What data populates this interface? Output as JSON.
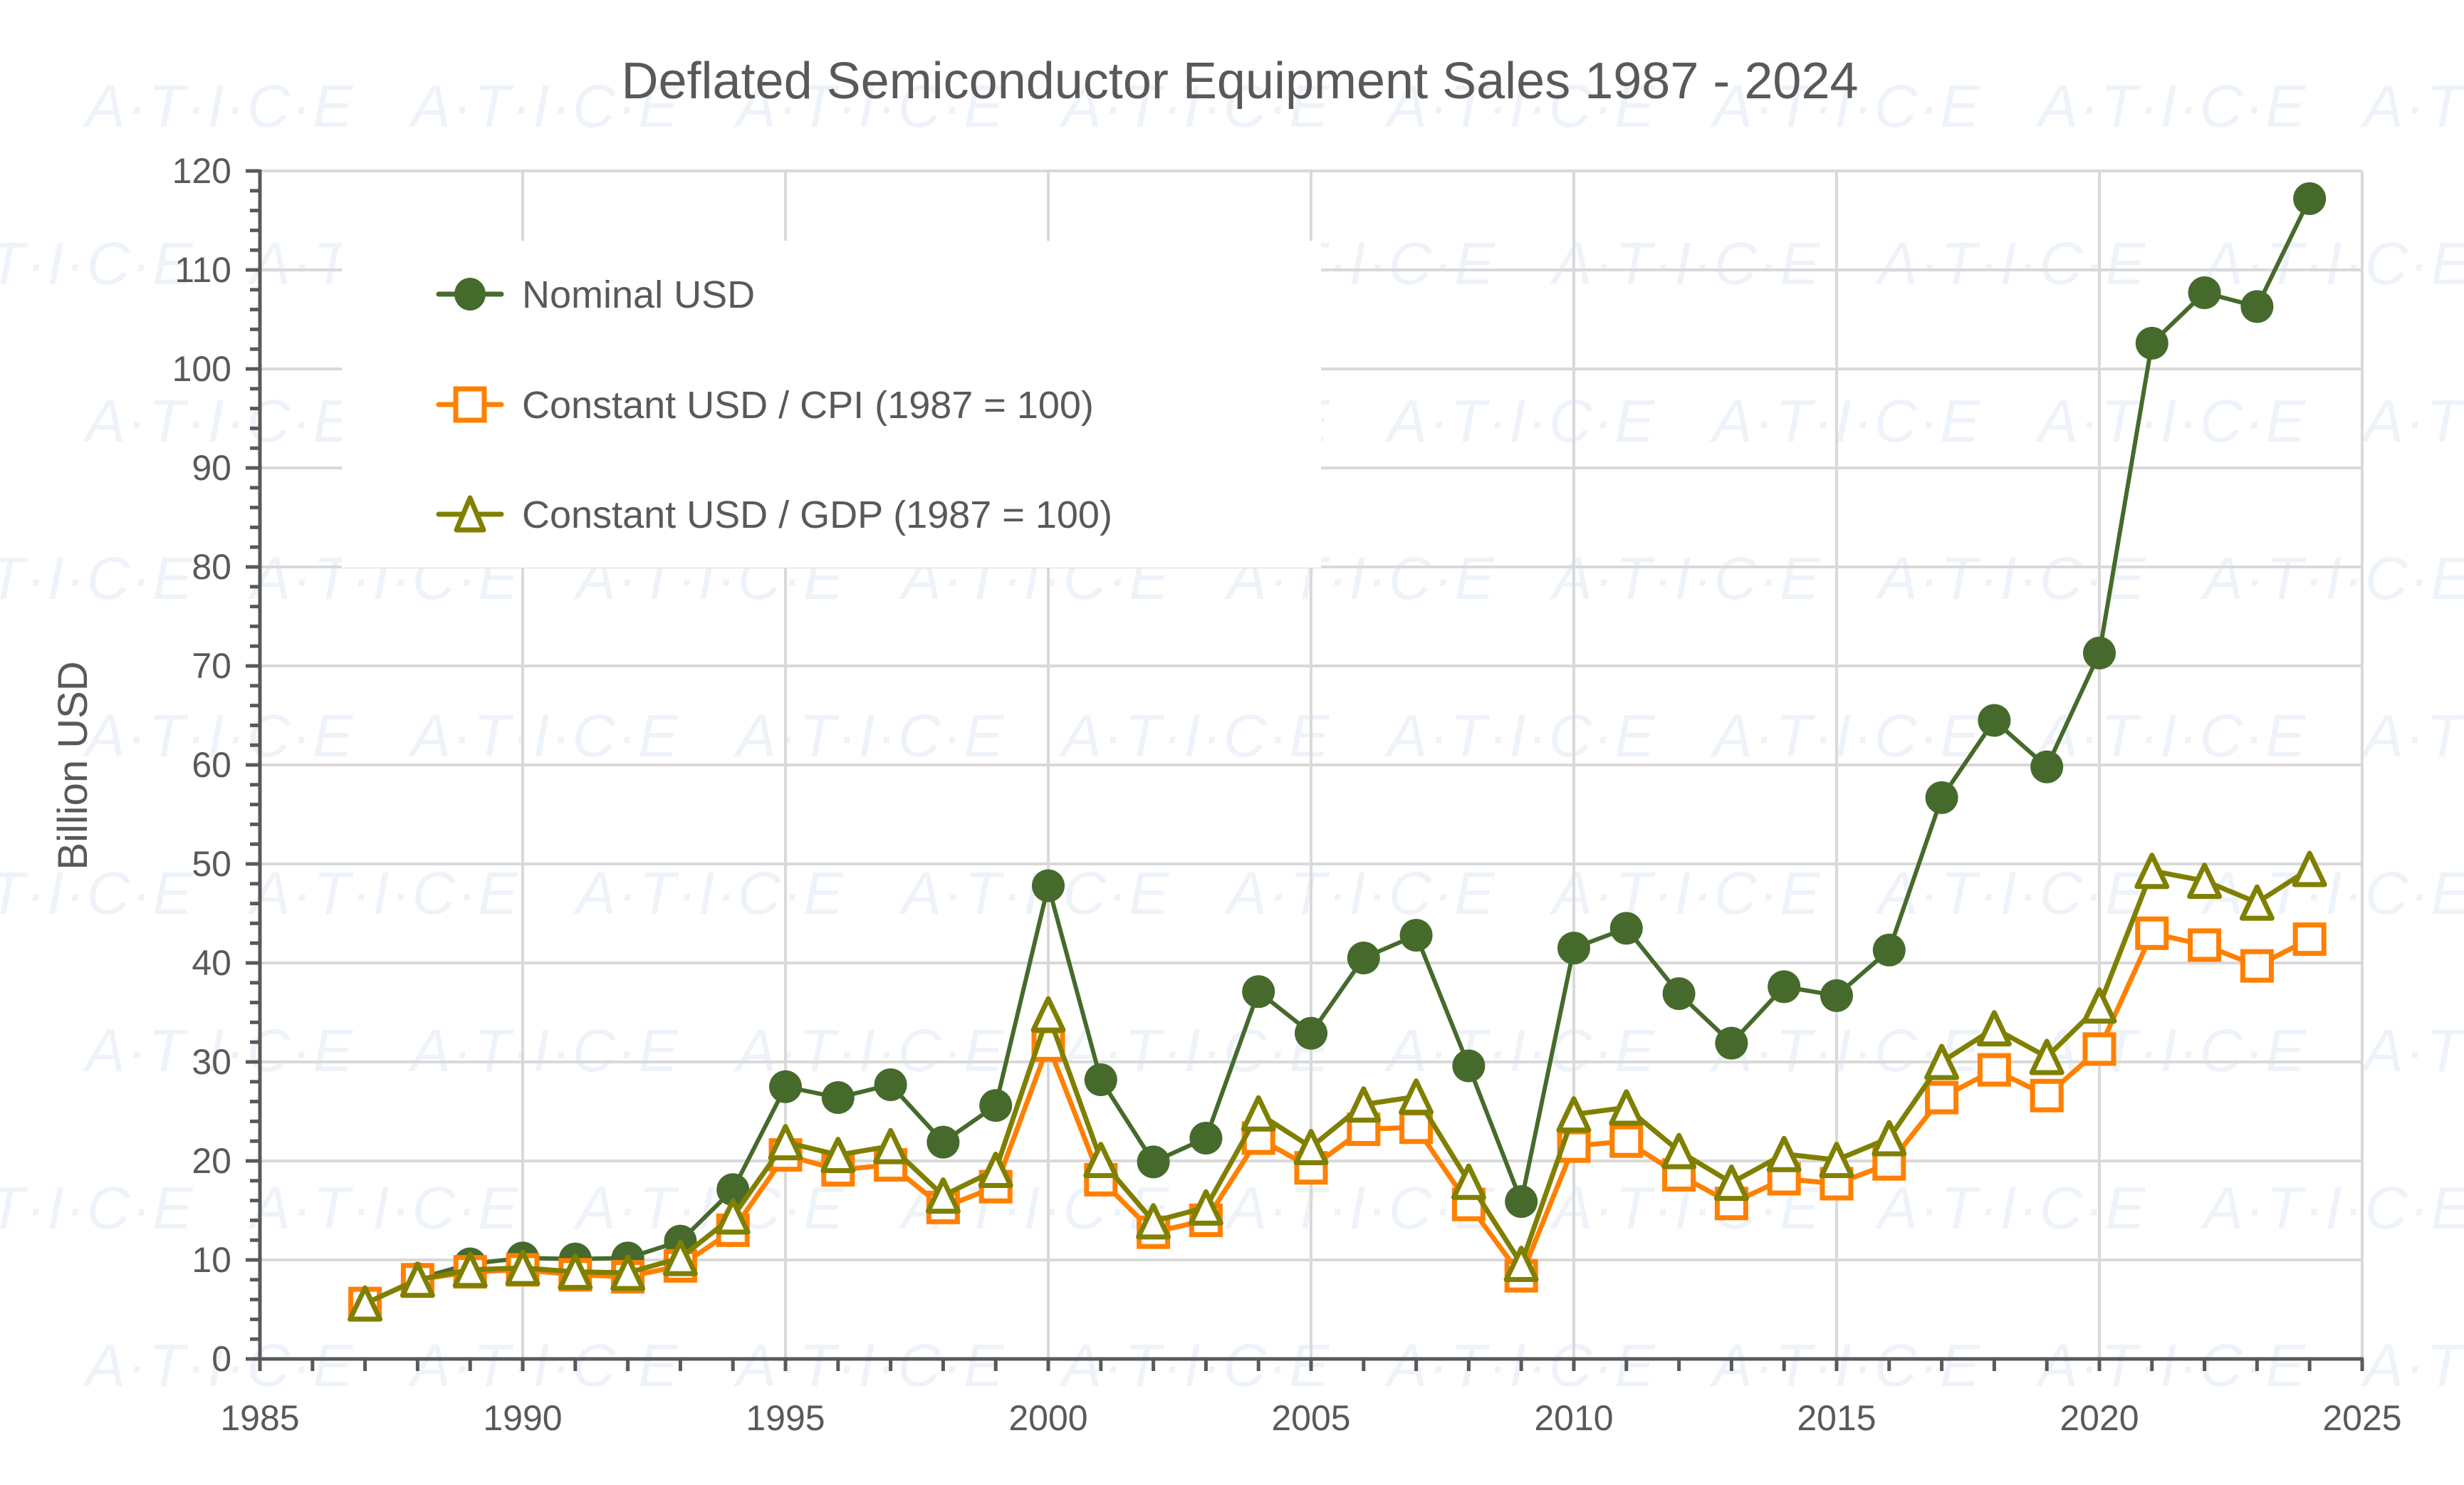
{
  "chart_data": {
    "type": "line",
    "title": "Deflated Semiconductor Equipment Sales 1987 - 2024",
    "xlabel": "",
    "ylabel": "Billion USD",
    "xlim": [
      1985,
      2025
    ],
    "ylim": [
      0,
      120
    ],
    "x_ticks": [
      1985,
      1990,
      1995,
      2000,
      2005,
      2010,
      2015,
      2020,
      2025
    ],
    "y_ticks": [
      0,
      10,
      20,
      30,
      40,
      50,
      60,
      70,
      80,
      90,
      100,
      110,
      120
    ],
    "x_tick_labels": [
      "1985",
      "1990",
      "1995",
      "2000",
      "2005",
      "2010",
      "2015",
      "2020",
      "2025"
    ],
    "y_tick_labels": [
      "0",
      "10",
      "20",
      "30",
      "40",
      "50",
      "60",
      "70",
      "80",
      "90",
      "100",
      "110",
      "120"
    ],
    "grid": true,
    "legend_position": "top-left",
    "watermark": "A·T·I·C·E",
    "x": [
      1987,
      1988,
      1989,
      1990,
      1991,
      1992,
      1993,
      1994,
      1995,
      1996,
      1997,
      1998,
      1999,
      2000,
      2001,
      2002,
      2003,
      2004,
      2005,
      2006,
      2007,
      2008,
      2009,
      2010,
      2011,
      2012,
      2013,
      2014,
      2015,
      2016,
      2017,
      2018,
      2019,
      2020,
      2021,
      2022,
      2023,
      2024
    ],
    "series": [
      {
        "name": "Nominal USD",
        "color": "#466a2b",
        "marker": "circle",
        "values": [
          5.6,
          8.1,
          9.6,
          10.2,
          10.1,
          10.2,
          11.9,
          17.1,
          27.5,
          26.4,
          27.7,
          21.9,
          25.6,
          47.8,
          28.2,
          19.9,
          22.3,
          37.1,
          32.9,
          40.5,
          42.8,
          29.6,
          15.9,
          41.5,
          43.5,
          36.9,
          31.9,
          37.6,
          36.7,
          41.3,
          56.7,
          64.5,
          59.8,
          71.3,
          102.6,
          107.7,
          106.3,
          117.2
        ]
      },
      {
        "name": "Constant USD / CPI (1987 = 100)",
        "color": "#ff8000",
        "marker": "square",
        "values": [
          5.6,
          8.0,
          8.8,
          9.0,
          8.5,
          8.3,
          9.4,
          13.0,
          20.6,
          19.1,
          19.6,
          15.3,
          17.4,
          31.7,
          18.1,
          12.8,
          14.0,
          22.3,
          19.3,
          23.2,
          23.4,
          15.6,
          8.4,
          21.5,
          22.0,
          18.6,
          15.7,
          18.2,
          17.7,
          19.7,
          26.4,
          29.2,
          26.6,
          31.3,
          43.0,
          41.8,
          39.7,
          42.4
        ]
      },
      {
        "name": "Constant USD / GDP (1987 = 100)",
        "color": "#7f7f00",
        "marker": "triangle",
        "values": [
          5.6,
          8.0,
          9.0,
          9.2,
          8.8,
          8.7,
          10.2,
          14.4,
          21.9,
          20.6,
          21.5,
          16.5,
          19.1,
          34.8,
          20.1,
          13.9,
          15.3,
          24.8,
          21.4,
          25.7,
          26.5,
          17.9,
          9.6,
          24.7,
          25.4,
          21.0,
          17.8,
          20.7,
          20.1,
          22.3,
          30.0,
          33.4,
          30.5,
          35.7,
          49.3,
          48.3,
          46.1,
          49.5
        ]
      }
    ]
  }
}
